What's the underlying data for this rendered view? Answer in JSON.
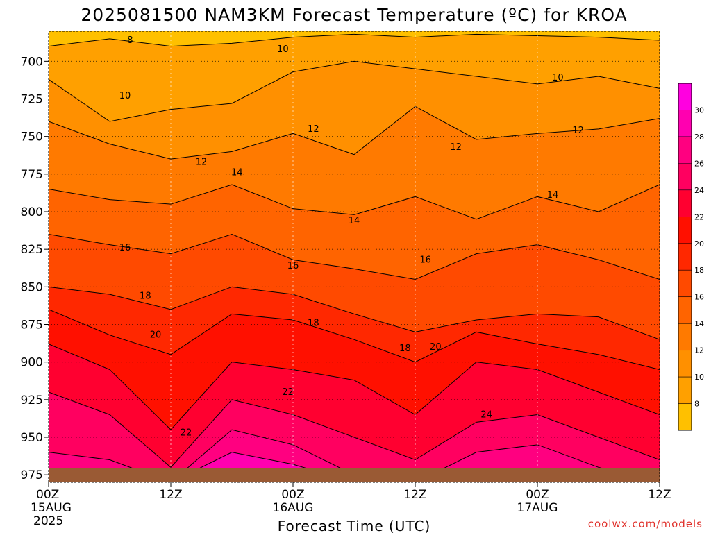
{
  "title": "2025081500 NAM3KM Forecast Temperature (ºC) for KROA",
  "credit": "coolwx.com/models",
  "colors": {
    "ground": "#9a5a34",
    "fills": [
      "#ffc000",
      "#ffa000",
      "#ff9000",
      "#ff7a00",
      "#ff6400",
      "#ff4a00",
      "#ff2800",
      "#ff1000",
      "#ff0030",
      "#ff0060",
      "#ff0080",
      "#ff00b0",
      "#ff00e0"
    ]
  },
  "chart_data": {
    "type": "heatmap",
    "xlabel": "Forecast Time (UTC)",
    "ylabel": "",
    "ylim": [
      980,
      680
    ],
    "y_ticks": [
      "700",
      "725",
      "750",
      "775",
      "800",
      "825",
      "850",
      "875",
      "900",
      "925",
      "950",
      "975"
    ],
    "x_ticks": [
      {
        "label": "00Z",
        "sub1": "15AUG",
        "sub2": "2025"
      },
      {
        "label": "12Z",
        "sub1": "",
        "sub2": ""
      },
      {
        "label": "00Z",
        "sub1": "16AUG",
        "sub2": ""
      },
      {
        "label": "12Z",
        "sub1": "",
        "sub2": ""
      },
      {
        "label": "00Z",
        "sub1": "17AUG",
        "sub2": ""
      },
      {
        "label": "12Z",
        "sub1": "",
        "sub2": ""
      }
    ],
    "colorbar_ticks": [
      "8",
      "10",
      "12",
      "14",
      "16",
      "18",
      "20",
      "22",
      "24",
      "26",
      "28",
      "30"
    ],
    "x_hours": [
      0,
      6,
      12,
      18,
      24,
      30,
      36,
      42,
      48,
      54,
      60
    ],
    "isotherms": [
      {
        "value": 8,
        "p": [
          690,
          685,
          690,
          688,
          684,
          682,
          684,
          682,
          683,
          684,
          686
        ]
      },
      {
        "value": 10,
        "p": [
          712,
          740,
          732,
          728,
          707,
          700,
          705,
          710,
          715,
          710,
          718
        ]
      },
      {
        "value": 12,
        "p": [
          740,
          755,
          765,
          760,
          748,
          762,
          730,
          752,
          748,
          745,
          738
        ]
      },
      {
        "value": 14,
        "p": [
          785,
          792,
          795,
          782,
          798,
          802,
          790,
          805,
          790,
          800,
          782
        ]
      },
      {
        "value": 16,
        "p": [
          815,
          822,
          828,
          815,
          832,
          838,
          845,
          828,
          822,
          832,
          845
        ]
      },
      {
        "value": 18,
        "p": [
          850,
          855,
          865,
          850,
          855,
          868,
          880,
          872,
          868,
          870,
          885
        ]
      },
      {
        "value": 20,
        "p": [
          865,
          882,
          895,
          868,
          872,
          885,
          900,
          880,
          888,
          895,
          905
        ]
      },
      {
        "value": 22,
        "p": [
          888,
          905,
          945,
          900,
          905,
          912,
          935,
          900,
          905,
          920,
          935
        ]
      },
      {
        "value": 24,
        "p": [
          920,
          935,
          970,
          925,
          935,
          950,
          965,
          940,
          935,
          950,
          965
        ]
      },
      {
        "value": 26,
        "p": [
          960,
          965,
          980,
          945,
          955,
          975,
          980,
          960,
          955,
          970,
          980
        ]
      },
      {
        "value": 28,
        "p": [
          980,
          980,
          980,
          960,
          968,
          980,
          980,
          980,
          975,
          980,
          980
        ]
      },
      {
        "value": 30,
        "p": [
          980,
          980,
          980,
          972,
          978,
          980,
          980,
          980,
          980,
          980,
          980
        ]
      }
    ],
    "contour_labels": [
      {
        "text": "8",
        "h": 8,
        "p": 686
      },
      {
        "text": "10",
        "h": 23,
        "p": 692
      },
      {
        "text": "10",
        "h": 50,
        "p": 711
      },
      {
        "text": "10",
        "h": 7.5,
        "p": 723
      },
      {
        "text": "12",
        "h": 26,
        "p": 745
      },
      {
        "text": "12",
        "h": 40,
        "p": 757
      },
      {
        "text": "12",
        "h": 52,
        "p": 746
      },
      {
        "text": "12",
        "h": 15,
        "p": 767
      },
      {
        "text": "14",
        "h": 18.5,
        "p": 774
      },
      {
        "text": "14",
        "h": 30,
        "p": 806
      },
      {
        "text": "14",
        "h": 49.5,
        "p": 789
      },
      {
        "text": "16",
        "h": 7.5,
        "p": 824
      },
      {
        "text": "16",
        "h": 24,
        "p": 836
      },
      {
        "text": "16",
        "h": 37,
        "p": 832
      },
      {
        "text": "18",
        "h": 9.5,
        "p": 856
      },
      {
        "text": "18",
        "h": 26,
        "p": 874
      },
      {
        "text": "18",
        "h": 35,
        "p": 891
      },
      {
        "text": "20",
        "h": 10.5,
        "p": 882
      },
      {
        "text": "20",
        "h": 38,
        "p": 890
      },
      {
        "text": "22",
        "h": 23.5,
        "p": 920
      },
      {
        "text": "22",
        "h": 13.5,
        "p": 947
      },
      {
        "text": "24",
        "h": 43,
        "p": 935
      }
    ]
  }
}
